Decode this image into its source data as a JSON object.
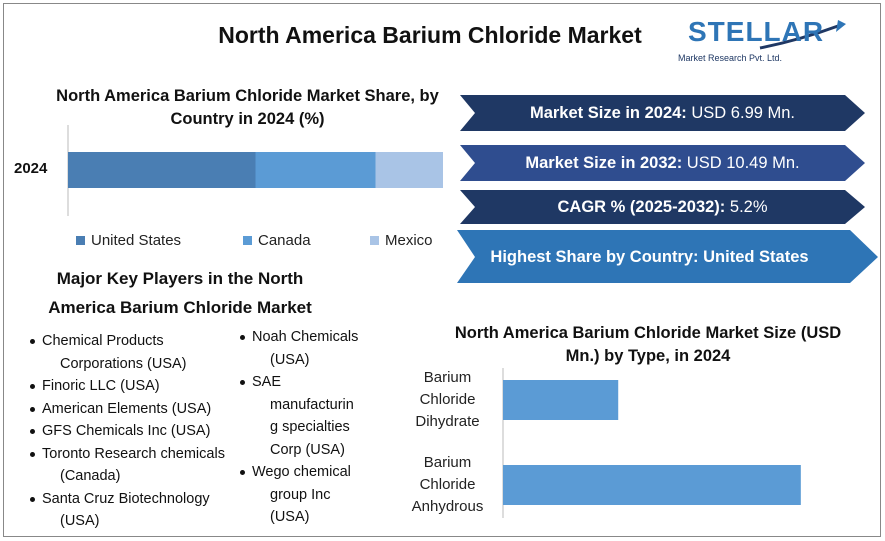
{
  "title": "North America Barium Chloride Market",
  "logo": {
    "name": "STELLAR",
    "tagline": "Market Research Pvt. Ltd."
  },
  "key_stats": [
    {
      "label": "Market Size in 2024:",
      "value": "USD 6.99 Mn."
    },
    {
      "label": "Market Size in 2032:",
      "value": "USD 10.49 Mn."
    },
    {
      "label": "CAGR % (2025-2032):",
      "value": "5.2%"
    },
    {
      "label": "Highest Share by Country:",
      "value": "United States"
    }
  ],
  "key_players": {
    "title": "Major Key Players in the North America Barium Chloride Market",
    "columns": [
      [
        "Chemical Products Corporations (USA)",
        "Finoric LLC (USA)",
        "American Elements (USA)",
        "GFS Chemicals Inc (USA)",
        "Toronto Research chemicals (Canada)",
        "Santa Cruz Biotechnology (USA)"
      ],
      [
        "Noah Chemicals (USA)",
        "SAE manufacturing specialties Corp (USA)",
        "Wego chemical group Inc (USA)"
      ]
    ]
  },
  "chart_data": [
    {
      "type": "stacked-bar",
      "title": "North America Barium Chloride Market Share, by Country in 2024 (%)",
      "categories": [
        "2024"
      ],
      "xlim": [
        0,
        100
      ],
      "series": [
        {
          "name": "United States",
          "color": "#4a7eb3",
          "values": [
            50
          ]
        },
        {
          "name": "Canada",
          "color": "#5b9bd5",
          "values": [
            32
          ]
        },
        {
          "name": "Mexico",
          "color": "#a9c4e6",
          "values": [
            18
          ]
        }
      ]
    },
    {
      "type": "bar",
      "title": "North America Barium Chloride Market Size (USD Mn.) by Type, in 2024",
      "categories": [
        "Barium Chloride Dihydrate",
        "Barium Chloride Anhydrous"
      ],
      "values": [
        1.95,
        5.04
      ],
      "color": "#5b9bd5",
      "xlim": [
        0,
        5.5
      ]
    }
  ]
}
